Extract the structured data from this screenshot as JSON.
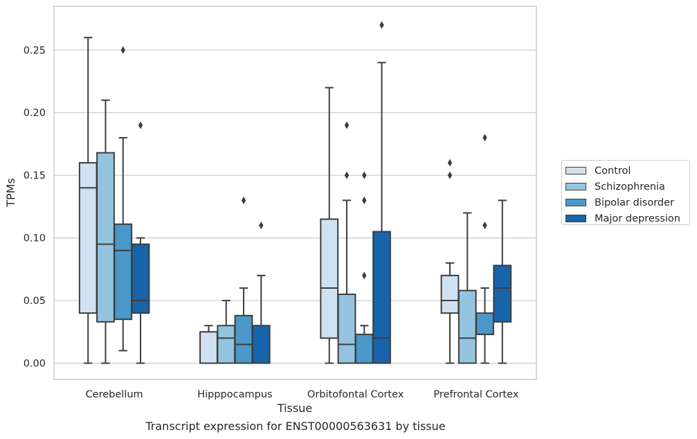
{
  "chart_data": {
    "type": "box",
    "xlabel": "Tissue",
    "ylabel": "TPMs",
    "caption": "Transcript expression for ENST00000563631 by tissue",
    "ylim": [
      -0.013,
      0.285
    ],
    "yticks": [
      0.0,
      0.05,
      0.1,
      0.15,
      0.2,
      0.25
    ],
    "ytick_labels": [
      "0.00",
      "0.05",
      "0.10",
      "0.15",
      "0.20",
      "0.25"
    ],
    "grid": "horizontal",
    "legend_position": "right",
    "categories": [
      "Cerebellum",
      "Hipppocampus",
      "Orbitofontal Cortex",
      "Prefrontal Cortex"
    ],
    "series": [
      {
        "name": "Control",
        "color": "#d0e1f2",
        "boxes": [
          {
            "min": 0.0,
            "q1": 0.04,
            "median": 0.14,
            "q3": 0.16,
            "max": 0.26,
            "outliers": []
          },
          {
            "min": 0.0,
            "q1": 0.0,
            "median": 0.0,
            "q3": 0.025,
            "max": 0.03,
            "outliers": []
          },
          {
            "min": 0.0,
            "q1": 0.02,
            "median": 0.06,
            "q3": 0.115,
            "max": 0.22,
            "outliers": []
          },
          {
            "min": 0.0,
            "q1": 0.04,
            "median": 0.05,
            "q3": 0.07,
            "max": 0.08,
            "outliers": [
              0.15,
              0.16
            ]
          }
        ]
      },
      {
        "name": "Schizophrenia",
        "color": "#94c4df",
        "boxes": [
          {
            "min": 0.0,
            "q1": 0.033,
            "median": 0.095,
            "q3": 0.168,
            "max": 0.21,
            "outliers": []
          },
          {
            "min": 0.0,
            "q1": 0.0,
            "median": 0.02,
            "q3": 0.03,
            "max": 0.05,
            "outliers": []
          },
          {
            "min": 0.0,
            "q1": 0.0,
            "median": 0.015,
            "q3": 0.055,
            "max": 0.13,
            "outliers": [
              0.15,
              0.19
            ]
          },
          {
            "min": 0.0,
            "q1": 0.0,
            "median": 0.02,
            "q3": 0.058,
            "max": 0.12,
            "outliers": []
          }
        ]
      },
      {
        "name": "Bipolar disorder",
        "color": "#4a98c9",
        "boxes": [
          {
            "min": 0.01,
            "q1": 0.035,
            "median": 0.09,
            "q3": 0.111,
            "max": 0.18,
            "outliers": [
              0.25
            ]
          },
          {
            "min": 0.0,
            "q1": 0.0,
            "median": 0.015,
            "q3": 0.038,
            "max": 0.06,
            "outliers": [
              0.13
            ]
          },
          {
            "min": 0.0,
            "q1": 0.0,
            "median": 0.0,
            "q3": 0.023,
            "max": 0.03,
            "outliers": [
              0.07,
              0.13,
              0.15
            ]
          },
          {
            "min": 0.0,
            "q1": 0.023,
            "median": 0.023,
            "q3": 0.04,
            "max": 0.06,
            "outliers": [
              0.11,
              0.18
            ]
          }
        ]
      },
      {
        "name": "Major depression",
        "color": "#1764ab",
        "boxes": [
          {
            "min": 0.0,
            "q1": 0.04,
            "median": 0.05,
            "q3": 0.095,
            "max": 0.1,
            "outliers": [
              0.19
            ]
          },
          {
            "min": 0.0,
            "q1": 0.0,
            "median": 0.0,
            "q3": 0.03,
            "max": 0.07,
            "outliers": [
              0.11
            ]
          },
          {
            "min": 0.0,
            "q1": 0.0,
            "median": 0.02,
            "q3": 0.105,
            "max": 0.24,
            "outliers": [
              0.27
            ]
          },
          {
            "min": 0.0,
            "q1": 0.033,
            "median": 0.06,
            "q3": 0.078,
            "max": 0.13,
            "outliers": []
          }
        ]
      }
    ]
  }
}
